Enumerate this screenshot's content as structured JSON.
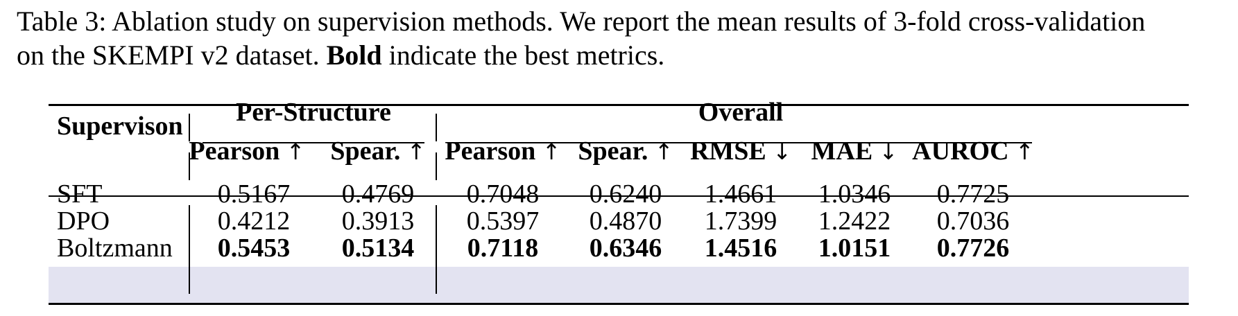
{
  "caption": {
    "line1": "Table 3: Ablation study on supervision methods. We report the mean results of 3-fold cross-validation",
    "line2_pre": "on the SKEMPI v2 dataset. ",
    "line2_bold": "Bold",
    "line2_post": " indicate the best metrics."
  },
  "table": {
    "row_header": "Supervison",
    "groups": {
      "per_structure": "Per-Structure",
      "overall": "Overall"
    },
    "columns": [
      {
        "name": "Pearson",
        "arrow": "↑"
      },
      {
        "name": "Spear.",
        "arrow": "↑"
      },
      {
        "name": "Pearson",
        "arrow": "↑"
      },
      {
        "name": "Spear.",
        "arrow": "↑"
      },
      {
        "name": "RMSE",
        "arrow": "↓"
      },
      {
        "name": "MAE",
        "arrow": "↓"
      },
      {
        "name": "AUROC",
        "arrow": "↑"
      }
    ],
    "rows": [
      {
        "method": "SFT",
        "values": [
          "0.5167",
          "0.4769",
          "0.7048",
          "0.6240",
          "1.4661",
          "1.0346",
          "0.7725"
        ]
      },
      {
        "method": "DPO",
        "values": [
          "0.4212",
          "0.3913",
          "0.5397",
          "0.4870",
          "1.7399",
          "1.2422",
          "0.7036"
        ]
      },
      {
        "method": "Boltzmann",
        "values": [
          "0.5453",
          "0.5134",
          "0.7118",
          "0.6346",
          "1.4516",
          "1.0151",
          "0.7726"
        ],
        "highlighted": true,
        "best": true
      }
    ],
    "highlight_color": "#e3e3f1"
  }
}
